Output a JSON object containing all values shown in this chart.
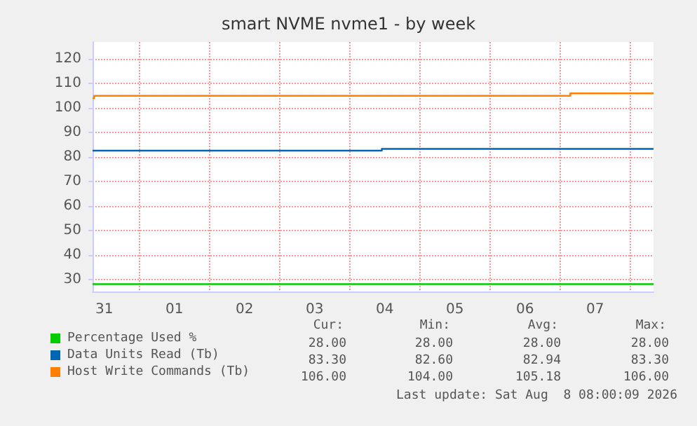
{
  "chart_data": {
    "type": "step",
    "title": "smart NVME nvme1 - by week",
    "xlim": [
      "2026-07-31T08:00",
      "2026-08-08T08:00"
    ],
    "xticks": [
      {
        "value": "2026-07-31T12:00",
        "label": "31"
      },
      {
        "value": "2026-08-01T00:00",
        "label": null
      },
      {
        "value": "2026-08-01T12:00",
        "label": "01"
      },
      {
        "value": "2026-08-02T00:00",
        "label": null
      },
      {
        "value": "2026-08-02T12:00",
        "label": "02"
      },
      {
        "value": "2026-08-03T00:00",
        "label": null
      },
      {
        "value": "2026-08-03T12:00",
        "label": "03"
      },
      {
        "value": "2026-08-04T00:00",
        "label": null
      },
      {
        "value": "2026-08-04T12:00",
        "label": "04"
      },
      {
        "value": "2026-08-05T00:00",
        "label": null
      },
      {
        "value": "2026-08-05T12:00",
        "label": "05"
      },
      {
        "value": "2026-08-06T00:00",
        "label": null
      },
      {
        "value": "2026-08-06T12:00",
        "label": "06"
      },
      {
        "value": "2026-08-07T00:00",
        "label": null
      },
      {
        "value": "2026-08-07T12:00",
        "label": "07"
      },
      {
        "value": "2026-08-08T00:00",
        "label": null
      }
    ],
    "ylim": [
      25,
      127
    ],
    "yticks": [
      30,
      40,
      50,
      60,
      70,
      80,
      90,
      100,
      110,
      120
    ],
    "series": [
      {
        "name": "Percentage Used %",
        "color": "#00cc00",
        "x": [
          "2026-07-31T08:00",
          "2026-08-08T08:00"
        ],
        "values": [
          28,
          28
        ]
      },
      {
        "name": "Data Units Read (Tb)",
        "color": "#0066b3",
        "x": [
          "2026-07-31T08:00",
          "2026-08-04T11:00",
          "2026-08-08T08:00"
        ],
        "values": [
          82.6,
          83.3,
          83.3
        ]
      },
      {
        "name": "Host Write Commands (Tb)",
        "color": "#ff8000",
        "x": [
          "2026-07-31T08:00",
          "2026-07-31T08:30",
          "2026-08-07T03:30",
          "2026-08-08T08:00"
        ],
        "values": [
          104,
          105,
          106,
          106
        ]
      }
    ],
    "annotations": [
      "Cur:",
      "Min:",
      "Avg:",
      "Max:",
      "28.00",
      "28.00",
      "28.00",
      "28.00",
      "83.30",
      "82.60",
      "82.94",
      "83.30",
      "106.00",
      "104.00",
      "105.18",
      "106.00",
      "Last update: Sat Aug  8 08:00:09 2026"
    ],
    "grid": true,
    "legend": "bottom",
    "marker": "none",
    "line_style": "solid"
  }
}
